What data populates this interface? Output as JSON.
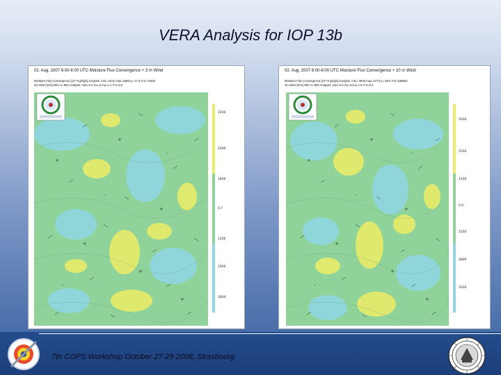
{
  "slide": {
    "title": "VERA Analysis for IOP 13b",
    "footer": "7th COPS Workshop October 27-29 2008, Strasbourg"
  },
  "panels": [
    {
      "title": "02. Aug. 2007 6:00-6:00 UTC Moisture Flux Convergence + 3 m Wind",
      "info1": "Moisture Flux Convergence [10^-6 g/kg/s] Analysis: min=-2441 max=1880 p=-17.9 s^2=74464",
      "info2": "3m Wind [m/s] Obs: n=894 Analysis: max=0.2 mx=2.9 p=1.1 s^2=0.3",
      "ticks": [
        "2200",
        "2000",
        "1800",
        "0.7",
        "1200",
        "2000",
        "3000"
      ]
    },
    {
      "title": "02. Aug. 2007 6:00-6:00 UTC Moisture Flux Convergence + 10 m Wind",
      "info1": "Moisture Flux Convergence [10^-6 g/kg/s] Analysis: min=-3944 max=2773 p=-38.5 s^2=159563",
      "info2": "3m Wind [m/s] Obs: n=894 Analysis: max=0.2 mx=3.8 p=1.6 s^2=0.4",
      "ticks": [
        "3500",
        "2500",
        "1500",
        "0.0",
        "1500",
        "2800",
        "3500"
      ]
    }
  ],
  "colors": {
    "accent": "#244c8c",
    "field_green": "#8fd39a",
    "field_yellow": "#e8ec6a",
    "field_cyan": "#8fd6e6"
  },
  "icons": {
    "left_logo": "cops-logo-icon",
    "right_logo": "university-seal-icon",
    "map_logo": "vera-logo-icon"
  }
}
